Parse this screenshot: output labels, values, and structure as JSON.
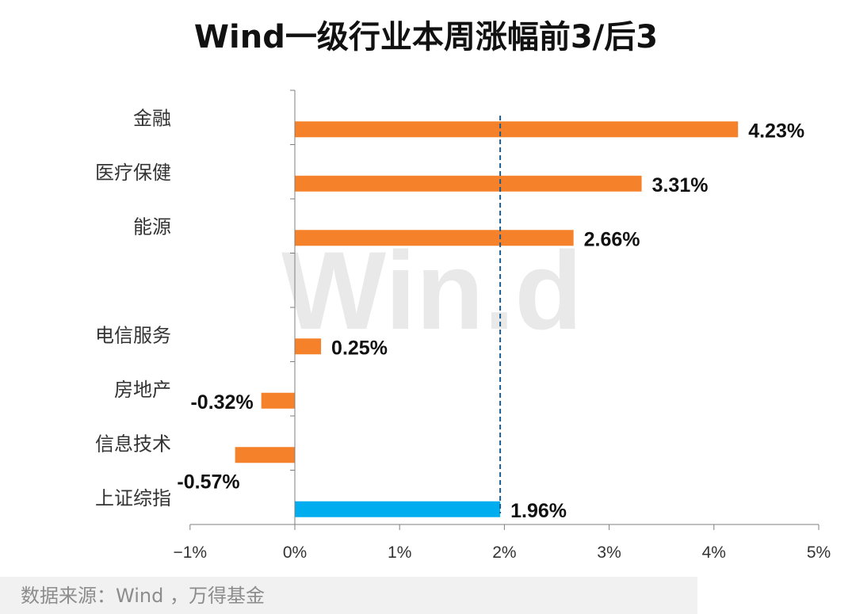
{
  "chart_data": {
    "type": "bar",
    "orientation": "horizontal",
    "title": "Wind一级行业本周涨幅前3/后3",
    "categories": [
      "金融",
      "医疗保健",
      "能源",
      "",
      "电信服务",
      "房地产",
      "信息技术",
      "上证综指"
    ],
    "values": [
      4.23,
      3.31,
      2.66,
      null,
      0.25,
      -0.32,
      -0.57,
      1.96
    ],
    "data_labels": [
      "4.23%",
      "3.31%",
      "2.66%",
      "",
      "0.25%",
      "-0.32%",
      "-0.57%",
      "1.96%"
    ],
    "xlim": [
      -1,
      5
    ],
    "xticks": [
      -1,
      0,
      1,
      2,
      3,
      4,
      5
    ],
    "xtick_labels": [
      "−1%",
      "0%",
      "1%",
      "2%",
      "3%",
      "4%",
      "5%"
    ],
    "reference_line": 1.96,
    "grid": false,
    "legend": "none"
  },
  "colors": {
    "bar": "#f5822a",
    "benchmark_bar": "#00aeef",
    "reference_line": "#1d5b8a",
    "axis": "#7f7f7f"
  },
  "watermark": "Win.d",
  "source_note": "数据来源：Wind ，万得基金"
}
